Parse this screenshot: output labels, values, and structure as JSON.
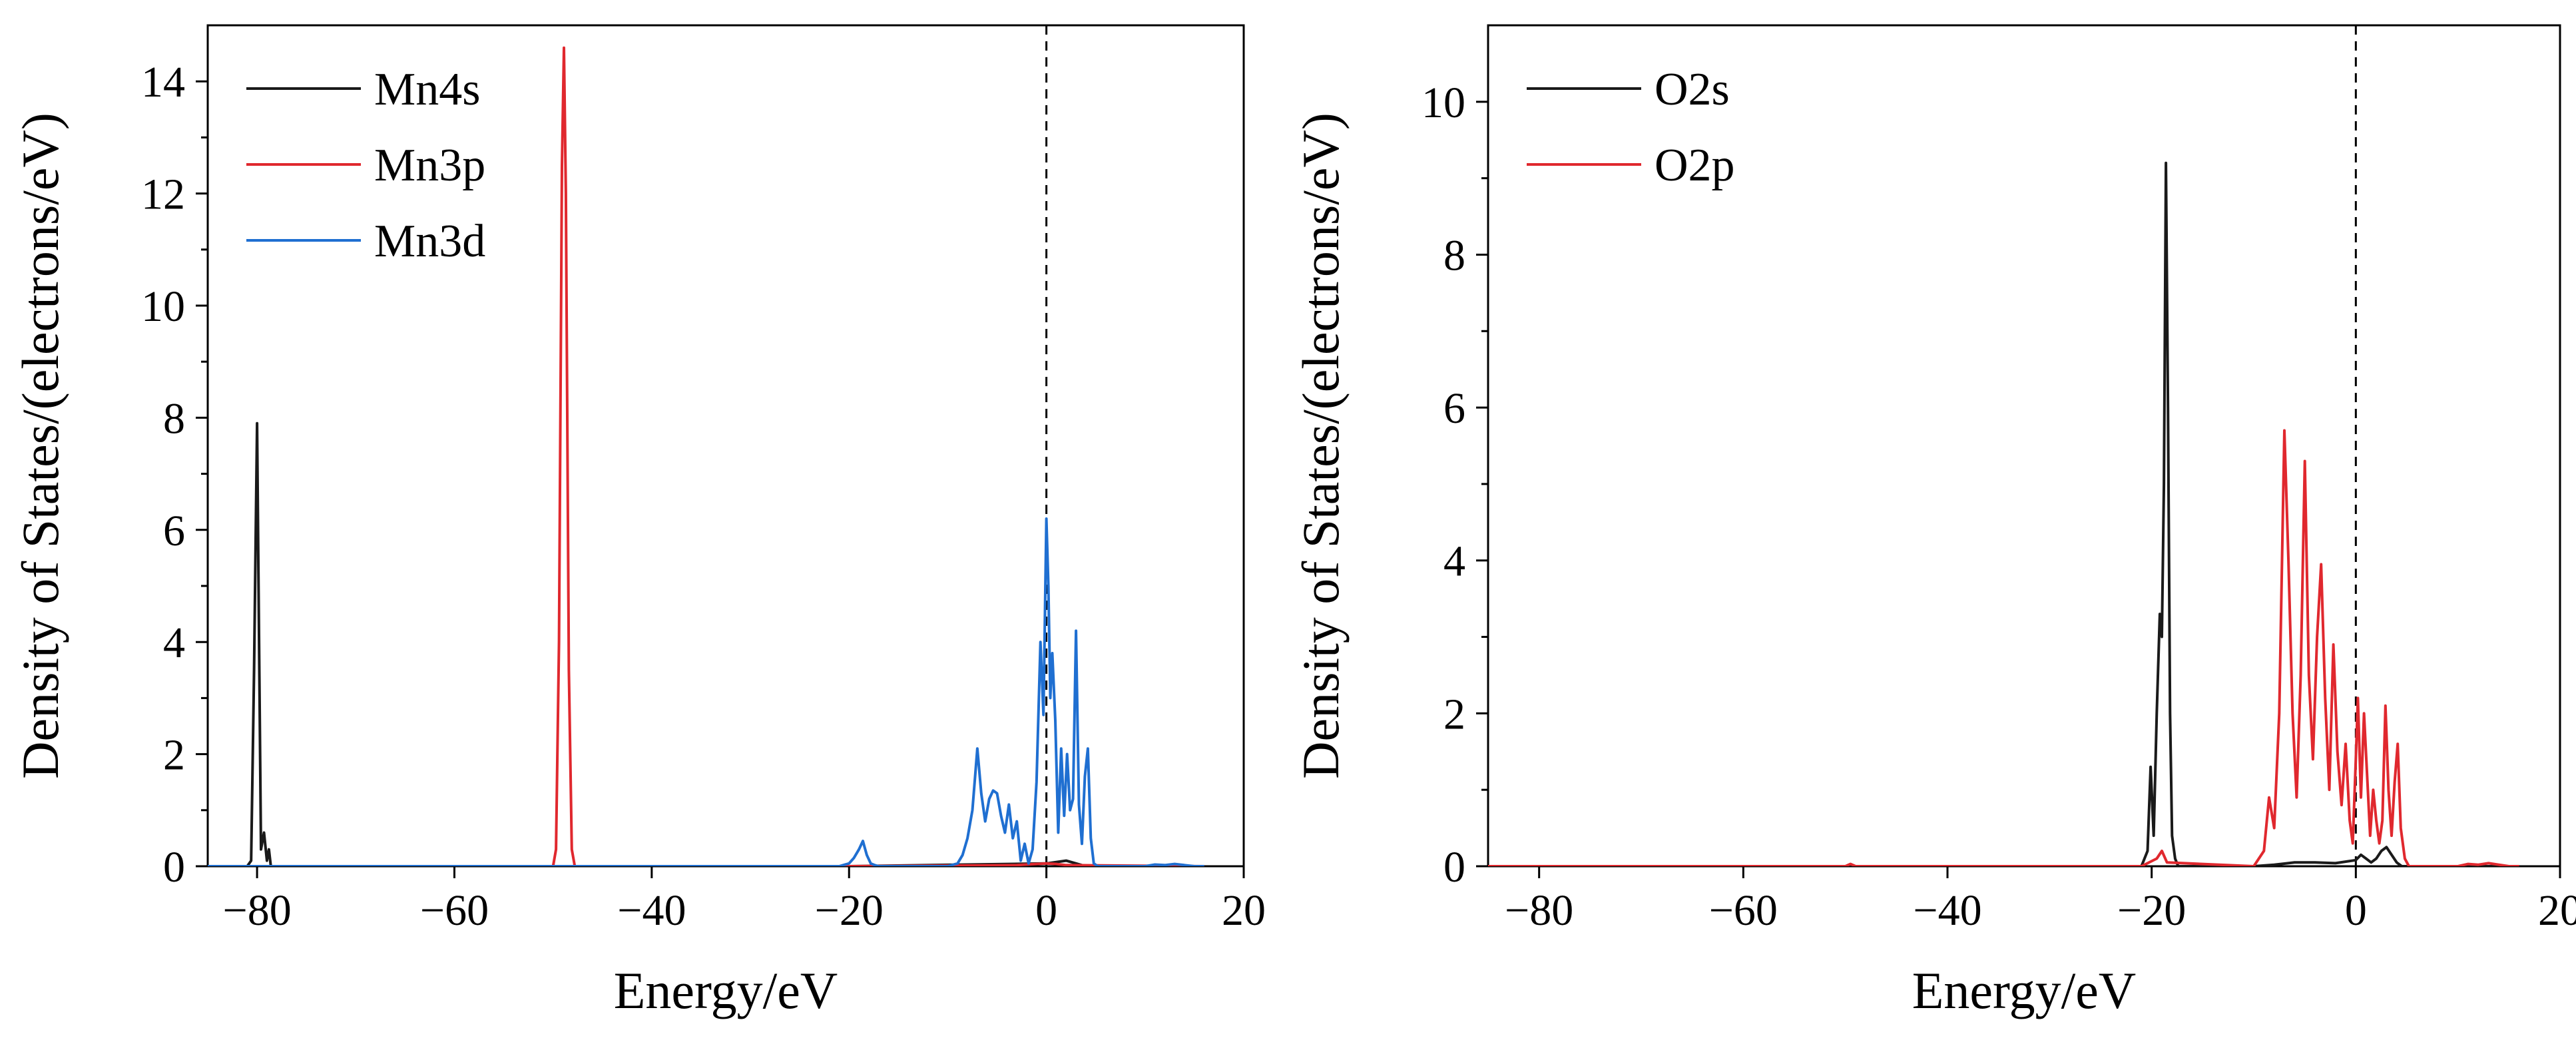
{
  "chart_data": [
    {
      "type": "line",
      "xlabel": "Energy/eV",
      "ylabel": "Density of States/(electrons/eV)",
      "xlim": [
        -85,
        20
      ],
      "ylim": [
        0,
        15
      ],
      "xticks": [
        -80,
        -60,
        -40,
        -20,
        0,
        20
      ],
      "yticks": [
        0,
        2,
        4,
        6,
        8,
        10,
        12,
        14
      ],
      "xtick_labels": [
        "−80",
        "−60",
        "−40",
        "−20",
        "0",
        "20"
      ],
      "ytick_labels": [
        "0",
        "2",
        "4",
        "6",
        "8",
        "10",
        "12",
        "14"
      ],
      "grid": false,
      "legend": "top-left",
      "fermi_line_x": 0,
      "series": [
        {
          "name": "Mn4s",
          "color": "#1a1a1a",
          "x": [
            -85,
            -81,
            -80.6,
            -80.3,
            -80.0,
            -79.8,
            -79.6,
            -79.3,
            -79.0,
            -78.8,
            -78.6,
            -78,
            -50,
            -20,
            0,
            2,
            3,
            4,
            16
          ],
          "y": [
            0,
            0,
            0.1,
            3.5,
            7.9,
            4.0,
            0.3,
            0.6,
            0.1,
            0.3,
            0,
            0,
            0,
            0,
            0.05,
            0.1,
            0.05,
            0,
            0
          ]
        },
        {
          "name": "Mn3p",
          "color": "#e0282e",
          "x": [
            -85,
            -50.0,
            -49.7,
            -49.4,
            -49.1,
            -48.9,
            -48.7,
            -48.4,
            -48.1,
            -47.8,
            -20,
            -3,
            -1,
            0,
            1,
            2,
            16
          ],
          "y": [
            0,
            0,
            0.3,
            4.0,
            12.5,
            14.6,
            12.0,
            3.5,
            0.3,
            0,
            0,
            0.02,
            0.04,
            0.05,
            0.04,
            0.02,
            0
          ]
        },
        {
          "name": "Mn3d",
          "color": "#1f6fd1",
          "x": [
            -85,
            -21,
            -20.0,
            -19.5,
            -19.0,
            -18.6,
            -18.2,
            -17.8,
            -17.4,
            -17.0,
            -10,
            -9.0,
            -8.5,
            -8.0,
            -7.5,
            -7.0,
            -6.6,
            -6.2,
            -5.8,
            -5.4,
            -5.0,
            -4.6,
            -4.2,
            -3.8,
            -3.4,
            -3.0,
            -2.6,
            -2.2,
            -1.8,
            -1.4,
            -1.0,
            -0.6,
            -0.3,
            0.0,
            0.2,
            0.4,
            0.6,
            0.9,
            1.2,
            1.5,
            1.8,
            2.1,
            2.4,
            2.7,
            3.0,
            3.3,
            3.6,
            3.9,
            4.2,
            4.5,
            4.8,
            5.2,
            6,
            10,
            11,
            12,
            13,
            14,
            15,
            16
          ],
          "y": [
            0,
            0,
            0.05,
            0.15,
            0.3,
            0.45,
            0.2,
            0.05,
            0.02,
            0,
            0,
            0.05,
            0.2,
            0.5,
            1.0,
            2.1,
            1.3,
            0.8,
            1.2,
            1.35,
            1.3,
            0.9,
            0.6,
            1.1,
            0.5,
            0.8,
            0.1,
            0.4,
            0.05,
            0.3,
            1.5,
            4.0,
            2.7,
            6.2,
            5.0,
            3.0,
            3.8,
            2.6,
            0.6,
            2.1,
            0.9,
            2.0,
            1.0,
            1.2,
            4.2,
            1.1,
            0.4,
            1.6,
            2.1,
            0.5,
            0.05,
            0,
            0,
            0,
            0.03,
            0.02,
            0.04,
            0.02,
            0,
            0
          ]
        }
      ]
    },
    {
      "type": "line",
      "xlabel": "Energy/eV",
      "ylabel": "Density of States/(electrons/eV)",
      "xlim": [
        -85,
        20
      ],
      "ylim": [
        0,
        11
      ],
      "xticks": [
        -80,
        -60,
        -40,
        -20,
        0,
        20
      ],
      "yticks": [
        0,
        2,
        4,
        6,
        8,
        10
      ],
      "xtick_labels": [
        "−80",
        "−60",
        "−40",
        "−20",
        "0",
        "20"
      ],
      "ytick_labels": [
        "0",
        "2",
        "4",
        "6",
        "8",
        "10"
      ],
      "grid": false,
      "legend": "top-left",
      "fermi_line_x": 0,
      "series": [
        {
          "name": "O2s",
          "color": "#1a1a1a",
          "x": [
            -85,
            -21,
            -20.4,
            -20.1,
            -19.8,
            -19.5,
            -19.2,
            -19.0,
            -18.8,
            -18.6,
            -18.4,
            -18.2,
            -18.0,
            -17.7,
            -17.4,
            -10,
            -8,
            -6,
            -4,
            -2,
            0,
            0.5,
            1.0,
            1.5,
            2.0,
            2.5,
            3.0,
            3.5,
            4.0,
            4.5,
            16
          ],
          "y": [
            0,
            0,
            0.2,
            1.3,
            0.4,
            2.0,
            3.3,
            3.0,
            5.0,
            9.2,
            6.0,
            2.0,
            0.4,
            0.1,
            0,
            0,
            0.02,
            0.05,
            0.05,
            0.04,
            0.08,
            0.15,
            0.1,
            0.05,
            0.1,
            0.2,
            0.25,
            0.15,
            0.05,
            0,
            0
          ]
        },
        {
          "name": "O2p",
          "color": "#e0282e",
          "x": [
            -85,
            -50,
            -49.5,
            -49,
            -21,
            -19.5,
            -19,
            -18.5,
            -10,
            -9.0,
            -8.5,
            -8.0,
            -7.5,
            -7.0,
            -6.6,
            -6.2,
            -5.8,
            -5.4,
            -5.0,
            -4.6,
            -4.2,
            -3.8,
            -3.4,
            -3.0,
            -2.6,
            -2.2,
            -1.8,
            -1.4,
            -1.0,
            -0.6,
            -0.3,
            0.0,
            0.2,
            0.5,
            0.8,
            1.1,
            1.4,
            1.7,
            2.0,
            2.3,
            2.6,
            2.9,
            3.2,
            3.5,
            3.8,
            4.1,
            4.4,
            4.8,
            5.2,
            6,
            10,
            11,
            12,
            13,
            14,
            15,
            16
          ],
          "y": [
            0,
            0,
            0.03,
            0,
            0,
            0.1,
            0.2,
            0.05,
            0,
            0.2,
            0.9,
            0.5,
            2.0,
            5.7,
            4.0,
            2.0,
            0.9,
            2.5,
            5.3,
            2.5,
            1.4,
            3.0,
            3.95,
            2.2,
            1.0,
            2.9,
            1.5,
            0.8,
            1.6,
            0.6,
            0.3,
            1.4,
            2.2,
            0.9,
            2.0,
            1.2,
            0.4,
            1.0,
            0.6,
            0.3,
            0.6,
            2.1,
            1.0,
            0.4,
            1.1,
            1.6,
            0.5,
            0.1,
            0,
            0,
            0,
            0.03,
            0.02,
            0.04,
            0.02,
            0,
            0
          ]
        }
      ]
    }
  ]
}
